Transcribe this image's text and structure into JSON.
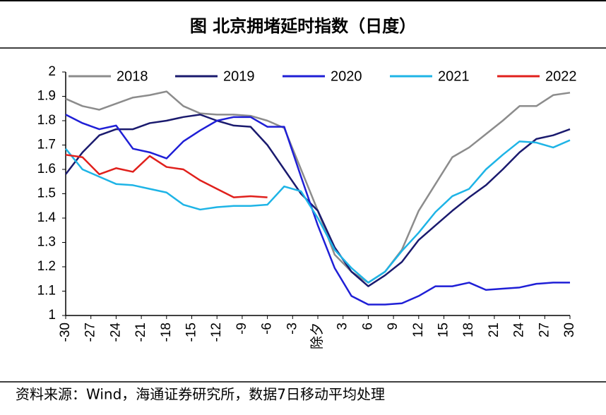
{
  "chart_data": {
    "type": "line",
    "title": "图  北京拥堵延时指数（日度）",
    "source": "资料来源：Wind，海通证券研究所，数据7日移动平均处理",
    "x": [
      -30,
      -28,
      -26,
      -24,
      -22,
      -20,
      -18,
      -16,
      -14,
      -12,
      -10,
      -8,
      -6,
      -4,
      -2,
      0,
      2,
      4,
      6,
      8,
      10,
      12,
      14,
      16,
      18,
      20,
      22,
      24,
      26,
      28,
      30
    ],
    "xlim": [
      -30,
      30
    ],
    "xticks": [
      -30,
      -27,
      -24,
      -21,
      -18,
      -15,
      -12,
      -9,
      -6,
      -3,
      {
        "value": 0,
        "label": "除夕"
      },
      3,
      6,
      9,
      12,
      15,
      18,
      21,
      24,
      27,
      30
    ],
    "ylim": [
      1,
      2
    ],
    "yticks": [
      1,
      1.1,
      1.2,
      1.3,
      1.4,
      1.5,
      1.6,
      1.7,
      1.8,
      1.9,
      2
    ],
    "series": [
      {
        "name": "2018",
        "color": "#8c8c8c",
        "values": [
          1.89,
          1.86,
          1.845,
          1.87,
          1.895,
          1.905,
          1.92,
          1.86,
          1.83,
          1.825,
          1.825,
          1.82,
          1.8,
          1.77,
          1.6,
          1.43,
          1.25,
          1.18,
          1.135,
          1.18,
          1.27,
          1.43,
          1.54,
          1.65,
          1.69,
          1.745,
          1.8,
          1.86,
          1.86,
          1.905,
          1.915
        ]
      },
      {
        "name": "2019",
        "color": "#1a1a6e",
        "values": [
          1.58,
          1.67,
          1.74,
          1.765,
          1.765,
          1.79,
          1.8,
          1.815,
          1.825,
          1.8,
          1.78,
          1.775,
          1.7,
          1.6,
          1.5,
          1.43,
          1.28,
          1.18,
          1.12,
          1.165,
          1.22,
          1.31,
          1.37,
          1.43,
          1.485,
          1.535,
          1.6,
          1.67,
          1.725,
          1.74,
          1.765
        ]
      },
      {
        "name": "2020",
        "color": "#1f1fd6",
        "values": [
          1.825,
          1.79,
          1.765,
          1.78,
          1.685,
          1.67,
          1.645,
          1.715,
          1.76,
          1.8,
          1.815,
          1.815,
          1.775,
          1.775,
          1.57,
          1.37,
          1.195,
          1.08,
          1.045,
          1.045,
          1.05,
          1.08,
          1.12,
          1.12,
          1.135,
          1.105,
          1.11,
          1.115,
          1.13,
          1.135,
          1.135
        ]
      },
      {
        "name": "2021",
        "color": "#1eb4e6",
        "values": [
          1.685,
          1.6,
          1.57,
          1.54,
          1.535,
          1.52,
          1.505,
          1.455,
          1.435,
          1.445,
          1.45,
          1.45,
          1.455,
          1.53,
          1.51,
          1.4,
          1.27,
          1.195,
          1.135,
          1.18,
          1.265,
          1.34,
          1.425,
          1.49,
          1.52,
          1.6,
          1.66,
          1.715,
          1.71,
          1.69,
          1.72
        ]
      },
      {
        "name": "2022",
        "color": "#e0201c",
        "values": [
          1.66,
          1.65,
          1.58,
          1.605,
          1.59,
          1.655,
          1.61,
          1.6,
          1.555,
          1.52,
          1.485,
          1.49,
          1.485,
          null,
          null,
          null,
          null,
          null,
          null,
          null,
          null,
          null,
          null,
          null,
          null,
          null,
          null,
          null,
          null,
          null,
          null
        ]
      }
    ]
  }
}
